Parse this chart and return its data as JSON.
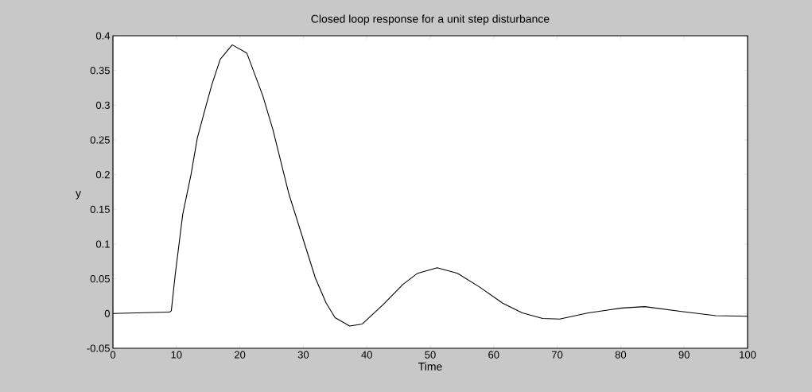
{
  "chart_data": {
    "type": "line",
    "title": "Closed loop response for a unit step disturbance",
    "xlabel": "Time",
    "ylabel": "y",
    "x": [
      0,
      8.9,
      9.2,
      9.8,
      11.0,
      12.3,
      13.3,
      14.6,
      15.6,
      16.9,
      18.8,
      21.1,
      23.6,
      25.2,
      27.7,
      29.8,
      31.9,
      33.6,
      35.0,
      37.3,
      39.3,
      42.6,
      45.7,
      48.0,
      51.1,
      54.3,
      57.8,
      61.4,
      64.5,
      67.7,
      70.4,
      74.9,
      80.2,
      83.8,
      89.6,
      95.0,
      100
    ],
    "series": [
      {
        "color": "#000000",
        "values": [
          0,
          0.002,
          0.004,
          0.055,
          0.143,
          0.2,
          0.253,
          0.297,
          0.33,
          0.366,
          0.387,
          0.375,
          0.314,
          0.265,
          0.173,
          0.112,
          0.051,
          0.015,
          -0.006,
          -0.018,
          -0.015,
          0.013,
          0.042,
          0.058,
          0.066,
          0.058,
          0.038,
          0.015,
          0.001,
          -0.007,
          -0.008,
          0.001,
          0.008,
          0.01,
          0.003,
          -0.003,
          -0.004
        ]
      }
    ],
    "xlim": [
      0,
      100
    ],
    "xticks": [
      0,
      10,
      20,
      30,
      40,
      50,
      60,
      70,
      80,
      90,
      100
    ],
    "ylim": [
      -0.05,
      0.4
    ],
    "yticks": [
      -0.05,
      0,
      0.05,
      0.1,
      0.15,
      0.2,
      0.25,
      0.3,
      0.35,
      0.4
    ],
    "grid": false,
    "marker": "none",
    "line_style": "solid"
  }
}
